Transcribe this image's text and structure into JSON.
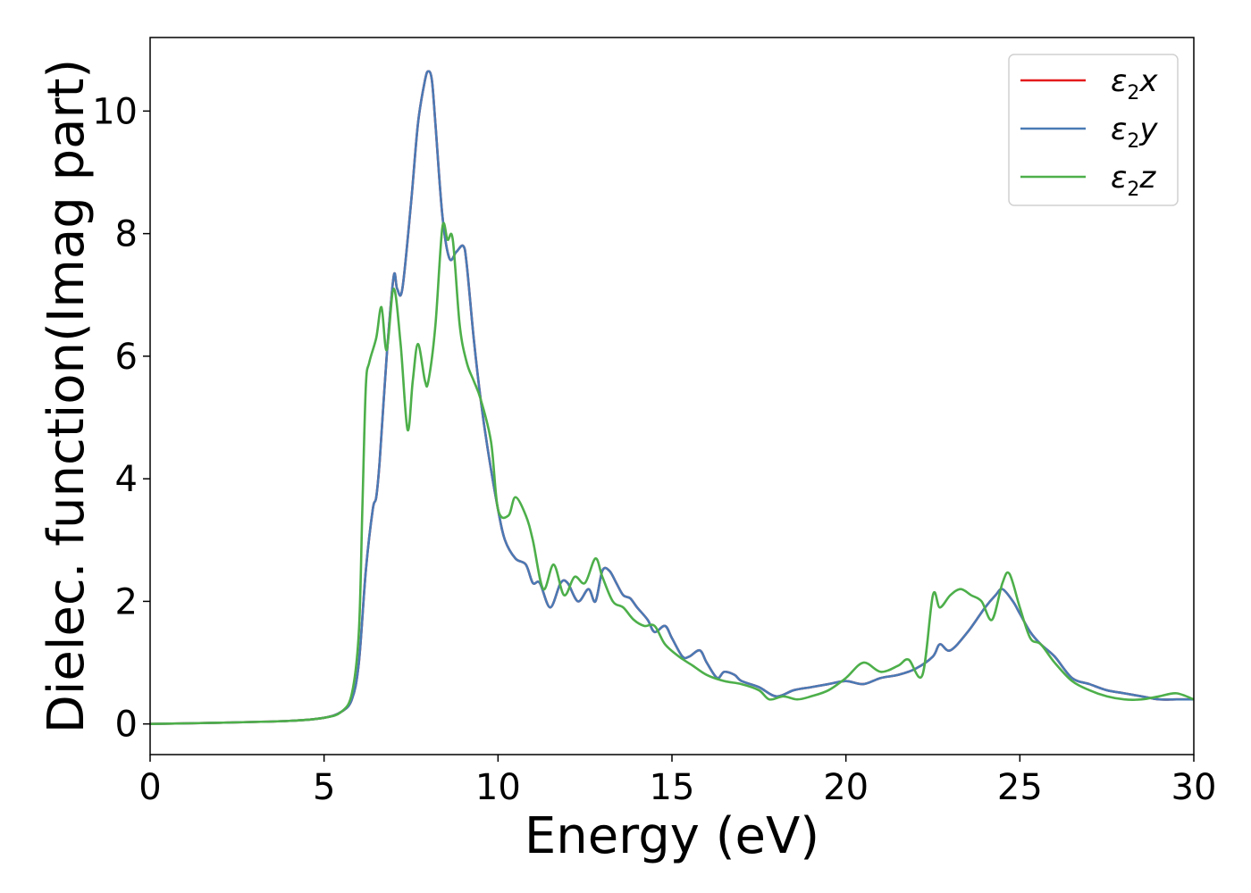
{
  "chart_data": {
    "type": "line",
    "title": "",
    "xlabel": "Energy (eV)",
    "ylabel": "Dielec. function(Imag part)",
    "xlim": [
      0,
      30
    ],
    "ylim": [
      -0.5,
      11.2
    ],
    "xticks": [
      0,
      5,
      10,
      15,
      20,
      25,
      30
    ],
    "yticks": [
      0,
      2,
      4,
      6,
      8,
      10
    ],
    "grid": false,
    "legend_position": "top-right",
    "series": [
      {
        "name": "ε2x",
        "legend": {
          "base": "ε",
          "sub": "2",
          "tail": "x"
        },
        "color": "#e41a1c",
        "x": [
          0,
          2,
          4,
          5,
          5.5,
          5.8,
          6.0,
          6.2,
          6.4,
          6.5,
          6.6,
          6.8,
          7.0,
          7.1,
          7.25,
          7.5,
          7.7,
          7.9,
          8.0,
          8.1,
          8.2,
          8.4,
          8.6,
          8.8,
          9.0,
          9.1,
          9.3,
          9.5,
          9.7,
          10.0,
          10.2,
          10.5,
          10.8,
          11.0,
          11.2,
          11.5,
          11.8,
          12.0,
          12.3,
          12.6,
          12.8,
          13.0,
          13.2,
          13.4,
          13.6,
          13.8,
          14.0,
          14.3,
          14.5,
          14.8,
          15.0,
          15.3,
          15.5,
          15.8,
          16.0,
          16.3,
          16.5,
          16.8,
          17.0,
          17.5,
          18.0,
          18.5,
          19.0,
          19.5,
          20.0,
          20.5,
          21.0,
          21.5,
          22.0,
          22.5,
          22.7,
          23.0,
          23.5,
          24.0,
          24.3,
          24.5,
          24.8,
          25.0,
          25.3,
          25.6,
          26.0,
          26.5,
          27.0,
          27.5,
          28.0,
          28.5,
          29.0,
          29.5,
          30.0
        ],
        "y": [
          0,
          0.02,
          0.05,
          0.1,
          0.2,
          0.4,
          1.0,
          2.5,
          3.5,
          3.7,
          4.3,
          6.0,
          7.3,
          7.1,
          7.1,
          8.5,
          9.8,
          10.5,
          10.65,
          10.5,
          9.8,
          8.3,
          7.6,
          7.7,
          7.8,
          7.5,
          6.3,
          5.3,
          4.5,
          3.5,
          3.0,
          2.7,
          2.6,
          2.3,
          2.3,
          1.9,
          2.3,
          2.3,
          2.0,
          2.2,
          2.0,
          2.5,
          2.5,
          2.3,
          2.1,
          2.05,
          1.9,
          1.7,
          1.5,
          1.6,
          1.4,
          1.1,
          1.1,
          1.2,
          1.0,
          0.75,
          0.85,
          0.8,
          0.7,
          0.6,
          0.45,
          0.55,
          0.6,
          0.65,
          0.7,
          0.65,
          0.75,
          0.8,
          0.9,
          1.1,
          1.3,
          1.2,
          1.5,
          1.9,
          2.1,
          2.2,
          2.0,
          1.8,
          1.5,
          1.3,
          1.1,
          0.75,
          0.65,
          0.55,
          0.5,
          0.45,
          0.4,
          0.4,
          0.4
        ]
      },
      {
        "name": "ε2y",
        "legend": {
          "base": "ε",
          "sub": "2",
          "tail": "y"
        },
        "color": "#4a7ab5",
        "x": [
          0,
          2,
          4,
          5,
          5.5,
          5.8,
          6.0,
          6.2,
          6.4,
          6.5,
          6.6,
          6.8,
          7.0,
          7.1,
          7.25,
          7.5,
          7.7,
          7.9,
          8.0,
          8.1,
          8.2,
          8.4,
          8.6,
          8.8,
          9.0,
          9.1,
          9.3,
          9.5,
          9.7,
          10.0,
          10.2,
          10.5,
          10.8,
          11.0,
          11.2,
          11.5,
          11.8,
          12.0,
          12.3,
          12.6,
          12.8,
          13.0,
          13.2,
          13.4,
          13.6,
          13.8,
          14.0,
          14.3,
          14.5,
          14.8,
          15.0,
          15.3,
          15.5,
          15.8,
          16.0,
          16.3,
          16.5,
          16.8,
          17.0,
          17.5,
          18.0,
          18.5,
          19.0,
          19.5,
          20.0,
          20.5,
          21.0,
          21.5,
          22.0,
          22.5,
          22.7,
          23.0,
          23.5,
          24.0,
          24.3,
          24.5,
          24.8,
          25.0,
          25.3,
          25.6,
          26.0,
          26.5,
          27.0,
          27.5,
          28.0,
          28.5,
          29.0,
          29.5,
          30.0
        ],
        "y": [
          0,
          0.02,
          0.05,
          0.1,
          0.2,
          0.4,
          1.0,
          2.5,
          3.5,
          3.7,
          4.3,
          6.0,
          7.3,
          7.1,
          7.1,
          8.5,
          9.8,
          10.5,
          10.65,
          10.5,
          9.8,
          8.3,
          7.6,
          7.7,
          7.8,
          7.5,
          6.3,
          5.3,
          4.5,
          3.5,
          3.0,
          2.7,
          2.6,
          2.3,
          2.3,
          1.9,
          2.3,
          2.3,
          2.0,
          2.2,
          2.0,
          2.5,
          2.5,
          2.3,
          2.1,
          2.05,
          1.9,
          1.7,
          1.5,
          1.6,
          1.4,
          1.1,
          1.1,
          1.2,
          1.0,
          0.75,
          0.85,
          0.8,
          0.7,
          0.6,
          0.45,
          0.55,
          0.6,
          0.65,
          0.7,
          0.65,
          0.75,
          0.8,
          0.9,
          1.1,
          1.3,
          1.2,
          1.5,
          1.9,
          2.1,
          2.2,
          2.0,
          1.8,
          1.5,
          1.3,
          1.1,
          0.75,
          0.65,
          0.55,
          0.5,
          0.45,
          0.4,
          0.4,
          0.4
        ]
      },
      {
        "name": "ε2z",
        "legend": {
          "base": "ε",
          "sub": "2",
          "tail": "z"
        },
        "color": "#4daf4a",
        "x": [
          0,
          2,
          4,
          5,
          5.5,
          5.8,
          6.0,
          6.1,
          6.2,
          6.3,
          6.5,
          6.65,
          6.8,
          7.0,
          7.2,
          7.4,
          7.55,
          7.7,
          7.9,
          8.0,
          8.2,
          8.4,
          8.55,
          8.7,
          8.9,
          9.1,
          9.3,
          9.5,
          9.8,
          10.0,
          10.3,
          10.5,
          10.8,
          11.0,
          11.3,
          11.6,
          11.9,
          12.2,
          12.5,
          12.8,
          13.0,
          13.3,
          13.6,
          13.9,
          14.2,
          14.5,
          14.8,
          15.2,
          15.6,
          16.0,
          16.5,
          17.0,
          17.5,
          17.8,
          18.2,
          18.6,
          19.0,
          19.5,
          20.0,
          20.5,
          21.0,
          21.5,
          21.8,
          22.2,
          22.5,
          22.7,
          23.0,
          23.3,
          23.6,
          23.9,
          24.2,
          24.5,
          24.7,
          25.0,
          25.3,
          25.6,
          26.0,
          26.5,
          27.0,
          27.5,
          28.0,
          28.5,
          29.0,
          29.5,
          30.0
        ],
        "y": [
          0,
          0.02,
          0.05,
          0.1,
          0.2,
          0.5,
          1.5,
          3.5,
          5.5,
          5.9,
          6.3,
          6.8,
          6.1,
          7.1,
          6.2,
          4.8,
          5.6,
          6.2,
          5.6,
          5.6,
          6.5,
          8.1,
          7.9,
          7.9,
          6.5,
          5.9,
          5.6,
          5.3,
          4.6,
          3.5,
          3.4,
          3.7,
          3.4,
          3.0,
          2.2,
          2.6,
          2.1,
          2.4,
          2.3,
          2.7,
          2.4,
          2.0,
          1.9,
          1.7,
          1.6,
          1.6,
          1.3,
          1.1,
          0.95,
          0.8,
          0.7,
          0.65,
          0.55,
          0.4,
          0.45,
          0.4,
          0.45,
          0.55,
          0.75,
          1.0,
          0.85,
          0.95,
          1.05,
          0.8,
          2.1,
          1.9,
          2.1,
          2.2,
          2.1,
          2.0,
          1.7,
          2.3,
          2.45,
          1.9,
          1.4,
          1.3,
          1.0,
          0.7,
          0.55,
          0.45,
          0.4,
          0.4,
          0.45,
          0.5,
          0.4
        ]
      }
    ]
  }
}
